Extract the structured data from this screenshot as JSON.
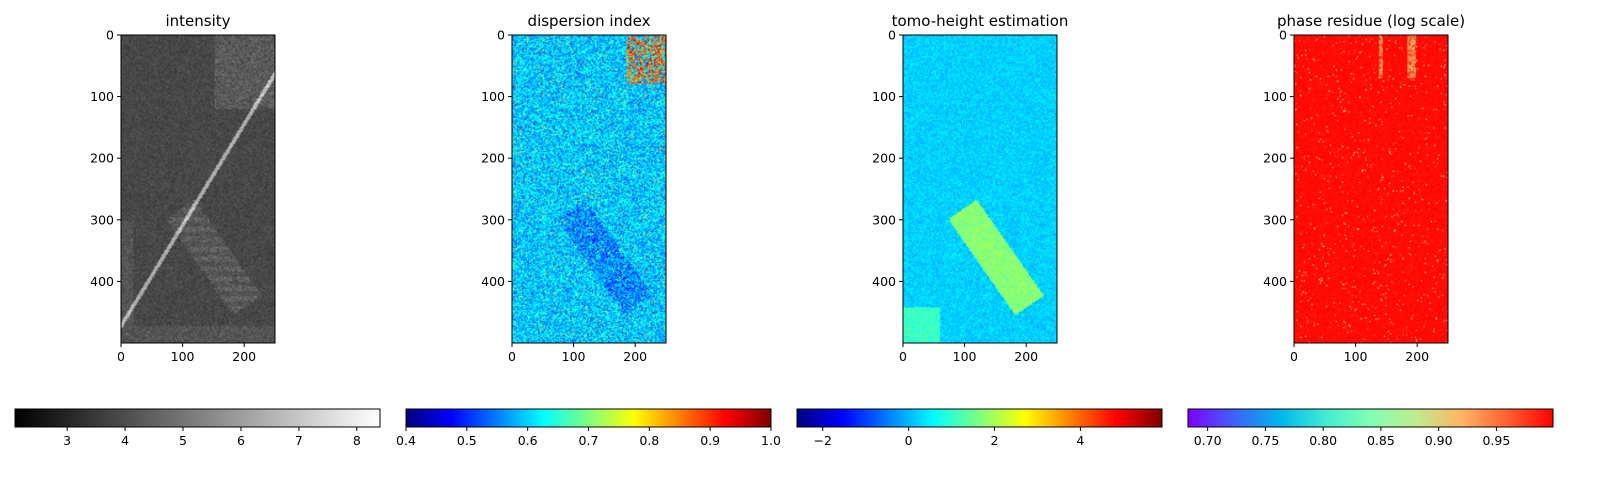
{
  "figure": {
    "layout": "1x4 image panels with horizontal colorbars below each panel"
  },
  "chart_data": [
    {
      "type": "heatmap",
      "title": "intensity",
      "image_shape": [
        500,
        250
      ],
      "x_ticks": [
        0,
        100,
        200
      ],
      "y_ticks": [
        0,
        100,
        200,
        300,
        400
      ],
      "colormap": "gray",
      "colorbar": {
        "range": [
          2.1,
          8.4
        ],
        "ticks": [
          "3",
          "4",
          "5",
          "6",
          "7",
          "8"
        ],
        "tick_values": [
          3,
          4,
          5,
          6,
          7,
          8
        ]
      }
    },
    {
      "type": "heatmap",
      "title": "dispersion index",
      "image_shape": [
        500,
        250
      ],
      "x_ticks": [
        0,
        100,
        200
      ],
      "y_ticks": [
        0,
        100,
        200,
        300,
        400
      ],
      "colormap": "jet",
      "colorbar": {
        "range": [
          0.4,
          1.0
        ],
        "ticks": [
          "0.4",
          "0.5",
          "0.6",
          "0.7",
          "0.8",
          "0.9",
          "1.0"
        ],
        "tick_values": [
          0.4,
          0.5,
          0.6,
          0.7,
          0.8,
          0.9,
          1.0
        ]
      }
    },
    {
      "type": "heatmap",
      "title": "tomo-height estimation",
      "image_shape": [
        500,
        250
      ],
      "x_ticks": [
        0,
        100,
        200
      ],
      "y_ticks": [
        0,
        100,
        200,
        300,
        400
      ],
      "colormap": "jet",
      "colorbar": {
        "range": [
          -2.6,
          5.9
        ],
        "ticks": [
          "−2",
          "0",
          "2",
          "4"
        ],
        "tick_values": [
          -2,
          0,
          2,
          4
        ]
      }
    },
    {
      "type": "heatmap",
      "title": "phase residue (log scale)",
      "image_shape": [
        500,
        250
      ],
      "x_ticks": [
        0,
        100,
        200
      ],
      "y_ticks": [
        0,
        100,
        200,
        300,
        400
      ],
      "colormap": "rainbow",
      "colorbar": {
        "range": [
          0.683,
          0.999
        ],
        "ticks": [
          "0.70",
          "0.75",
          "0.80",
          "0.85",
          "0.90",
          "0.95"
        ],
        "tick_values": [
          0.7,
          0.75,
          0.8,
          0.85,
          0.9,
          0.95
        ]
      }
    }
  ],
  "colormaps": {
    "gray": [
      "#000000",
      "#ffffff"
    ],
    "jet": [
      "#00007f",
      "#0000ff",
      "#007fff",
      "#00ffff",
      "#7fff7f",
      "#ffff00",
      "#ff7f00",
      "#ff0000",
      "#7f0000"
    ],
    "rainbow": [
      "#7f00ff",
      "#3f61fa",
      "#00b5eb",
      "#40ecd3",
      "#80ffb4",
      "#c0eb8d",
      "#ffb462",
      "#ff6030",
      "#ff0000"
    ]
  }
}
